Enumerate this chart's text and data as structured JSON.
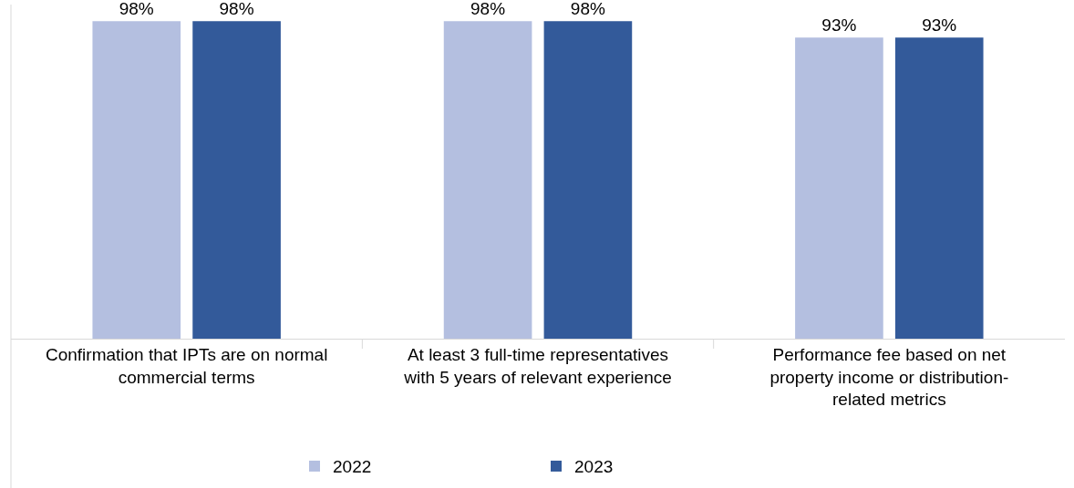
{
  "chart_data": {
    "type": "bar",
    "categories": [
      "Confirmation that IPTs are on normal commercial terms",
      "At least 3 full-time representatives with 5 years of relevant experience",
      "Performance fee based on net property income or distribution-related metrics"
    ],
    "series": [
      {
        "name": "2022",
        "color": "#b4bfe0",
        "values": [
          98,
          98,
          93
        ],
        "value_labels": [
          "98%",
          "98%",
          "93%"
        ]
      },
      {
        "name": "2023",
        "color": "#335a9a",
        "values": [
          98,
          98,
          93
        ],
        "value_labels": [
          "98%",
          "98%",
          "93%"
        ]
      }
    ],
    "legend": "bottom"
  }
}
